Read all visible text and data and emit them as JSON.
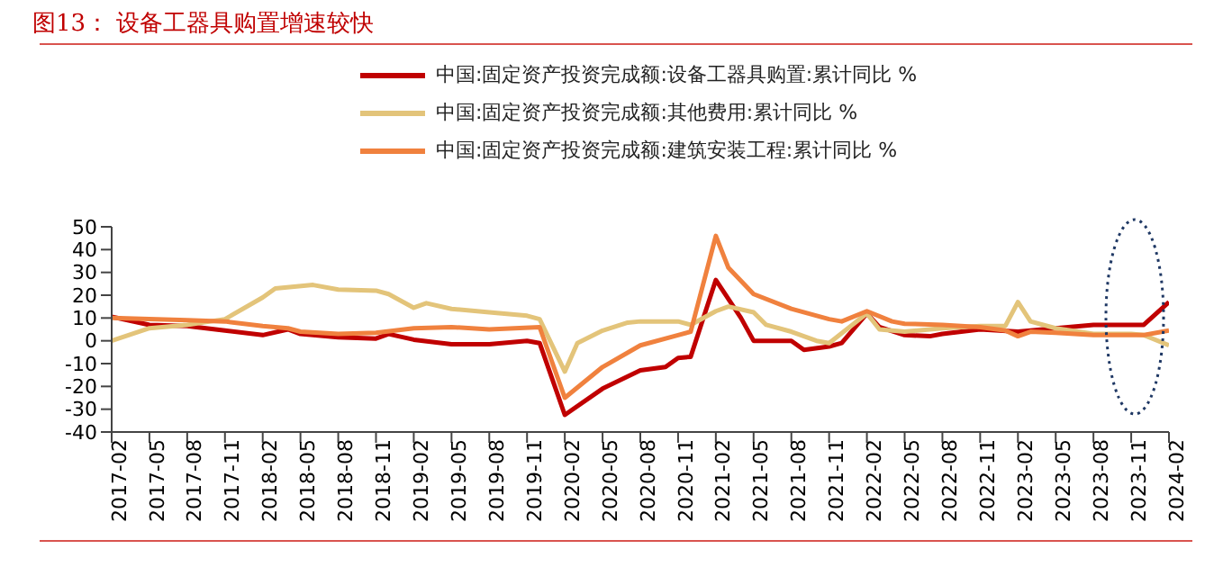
{
  "chart_data": {
    "type": "line",
    "title": "图13：  设备工器具购置增速较快",
    "xlim": [
      "2017-02",
      "2024-02"
    ],
    "xticks": [
      "2017-02",
      "2017-05",
      "2017-08",
      "2017-11",
      "2018-02",
      "2018-05",
      "2018-08",
      "2018-11",
      "2019-02",
      "2019-05",
      "2019-08",
      "2019-11",
      "2020-02",
      "2020-05",
      "2020-08",
      "2020-11",
      "2021-02",
      "2021-05",
      "2021-08",
      "2021-11",
      "2022-02",
      "2022-05",
      "2022-08",
      "2022-11",
      "2023-02",
      "2023-05",
      "2023-08",
      "2023-11",
      "2024-02"
    ],
    "ylim": [
      -40,
      50
    ],
    "yticks": [
      -40,
      -30,
      -20,
      -10,
      0,
      10,
      20,
      30,
      40,
      50
    ],
    "grid": false,
    "legend": "top",
    "marker": "none",
    "line_style": "solid",
    "series": [
      {
        "name": "中国:固定资产投资完成额:设备工器具购置:累计同比 %",
        "color": "#c00000",
        "x": [
          "2017-02",
          "2017-05",
          "2017-08",
          "2017-11",
          "2018-02",
          "2018-04",
          "2018-05",
          "2018-08",
          "2018-11",
          "2018-12",
          "2019-02",
          "2019-05",
          "2019-08",
          "2019-11",
          "2019-12",
          "2020-02",
          "2020-05",
          "2020-08",
          "2020-10",
          "2020-11",
          "2020-12",
          "2021-02",
          "2021-04",
          "2021-05",
          "2021-08",
          "2021-09",
          "2021-11",
          "2021-12",
          "2022-02",
          "2022-03",
          "2022-05",
          "2022-07",
          "2022-08",
          "2022-11",
          "2023-02",
          "2023-05",
          "2023-08",
          "2023-11",
          "2023-12",
          "2024-02"
        ],
        "values": [
          10.5,
          7,
          6.5,
          4.5,
          2.5,
          5,
          3,
          1.5,
          1,
          3,
          0.5,
          -1.5,
          -1.5,
          0,
          -1,
          -32.5,
          -21,
          -13,
          -11.5,
          -7.5,
          -7,
          26.7,
          10,
          0,
          0,
          -4,
          -2.5,
          -1,
          12,
          6,
          2.5,
          2,
          3,
          5,
          4,
          5.5,
          7,
          7,
          7,
          17
        ]
      },
      {
        "name": "中国:固定资产投资完成额:其他费用:累计同比 %",
        "color": "#e3c47a",
        "x": [
          "2017-02",
          "2017-05",
          "2017-08",
          "2017-11",
          "2018-02",
          "2018-03",
          "2018-06",
          "2018-08",
          "2018-11",
          "2018-12",
          "2019-02",
          "2019-03",
          "2019-05",
          "2019-08",
          "2019-11",
          "2019-12",
          "2020-02",
          "2020-03",
          "2020-05",
          "2020-07",
          "2020-08",
          "2020-11",
          "2020-12",
          "2021-02",
          "2021-03",
          "2021-05",
          "2021-06",
          "2021-08",
          "2021-10",
          "2021-11",
          "2022-02",
          "2022-03",
          "2022-05",
          "2022-08",
          "2022-11",
          "2023-01",
          "2023-02",
          "2023-03",
          "2023-05",
          "2023-08",
          "2023-11",
          "2023-12",
          "2024-02"
        ],
        "values": [
          0,
          5.5,
          7,
          9.5,
          19,
          23,
          24.5,
          22.5,
          22,
          20.5,
          14.5,
          16.5,
          14,
          12.5,
          11,
          9.5,
          -13.5,
          -1,
          4.5,
          8,
          8.5,
          8.5,
          7,
          13,
          15,
          12.5,
          7,
          4,
          0,
          -1,
          12,
          5,
          4,
          5.5,
          6.5,
          6.5,
          17,
          8.5,
          5.5,
          3,
          3,
          2.5,
          -2
        ]
      },
      {
        "name": "中国:固定资产投资完成额:建筑安装工程:累计同比 %",
        "color": "#f0813e",
        "x": [
          "2017-02",
          "2017-08",
          "2017-11",
          "2018-02",
          "2018-04",
          "2018-05",
          "2018-08",
          "2018-11",
          "2019-02",
          "2019-05",
          "2019-08",
          "2019-12",
          "2020-02",
          "2020-05",
          "2020-08",
          "2020-11",
          "2020-12",
          "2021-02",
          "2021-03",
          "2021-05",
          "2021-08",
          "2021-11",
          "2021-12",
          "2022-02",
          "2022-04",
          "2022-05",
          "2022-08",
          "2022-11",
          "2023-01",
          "2023-02",
          "2023-03",
          "2023-05",
          "2023-08",
          "2023-11",
          "2023-12",
          "2024-02"
        ],
        "values": [
          10,
          9,
          8.5,
          6.5,
          5.5,
          4,
          3,
          3.5,
          5.5,
          6,
          5,
          6,
          -25,
          -11.5,
          -2,
          2.5,
          4,
          46,
          32,
          20.5,
          14,
          9.5,
          8.5,
          13,
          8.5,
          7.5,
          7,
          6,
          4.5,
          2,
          4,
          3.5,
          2.5,
          2.5,
          2.5,
          4.5
        ]
      }
    ]
  }
}
